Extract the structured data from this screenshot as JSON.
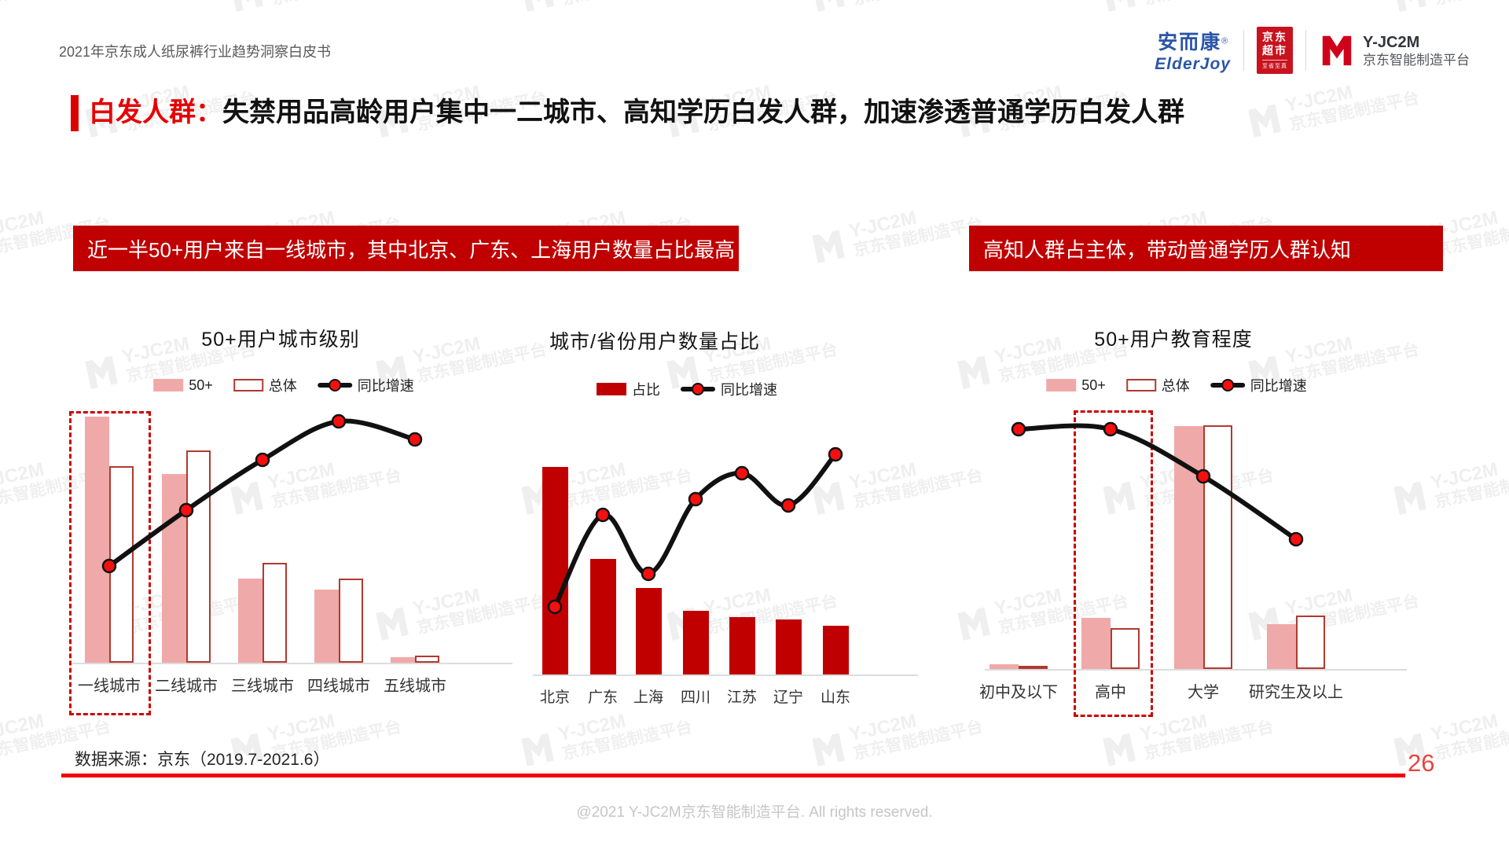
{
  "page": {
    "header_title": "2021年京东成人纸尿裤行业趋势洞察白皮书",
    "headline_tag": "白发人群：",
    "headline_text": "失禁用品高龄用户集中一二城市、高知学历白发人群，加速渗透普通学历白发人群",
    "source_note": "数据来源：京东（2019.7-2021.6）",
    "page_number": "26",
    "footer_copyright": "@2021 Y-JC2M京东智能制造平台. All rights reserved."
  },
  "logos": {
    "elderjoy_cn": "安而康",
    "elderjoy_reg": "®",
    "elderjoy_en": "ElderJoy",
    "jd_market_line1": "京东",
    "jd_market_line2": "超市",
    "jd_market_tagline": "至省至真",
    "platform_name": "Y-JC2M",
    "platform_sub": "京东智能制造平台"
  },
  "banners": {
    "left": "近一半50+用户来自一线城市，其中北京、广东、上海用户数量占比最高",
    "right": "高知人群占主体，带动普通学历人群认知"
  },
  "watermark": {
    "line1": "Y-JC2M",
    "line2": "京东智能制造平台"
  },
  "colors": {
    "banner_red": "#C00000",
    "headline_red": "#E60000",
    "bar_pink": "#EFA9A9",
    "bar_outline_red": "#B03A30",
    "bar_red": "#C00000",
    "line_black": "#111111",
    "dot_red": "#F50F0F",
    "rule_red": "#F40000",
    "elderjoy_blue": "#2B55A7"
  },
  "chart_data": [
    {
      "type": "bar+line",
      "title": "50+用户城市级别",
      "categories": [
        "一线城市",
        "二线城市",
        "三线城市",
        "四线城市",
        "五线城市"
      ],
      "unit": "estimated index (0-100), read from bar/line heights",
      "series": [
        {
          "name": "50+",
          "type": "bar",
          "style": "pink",
          "values": [
            47,
            36,
            16,
            14,
            1
          ]
        },
        {
          "name": "总体",
          "type": "bar",
          "style": "outline",
          "values": [
            37.5,
            40.5,
            19,
            16,
            1.4
          ]
        },
        {
          "name": "同比增速",
          "type": "line",
          "values": [
            38,
            60,
            80,
            95,
            88
          ]
        }
      ],
      "legend": [
        {
          "label": "50+",
          "swatch": "pink"
        },
        {
          "label": "总体",
          "swatch": "outline"
        },
        {
          "label": "同比增速",
          "swatch": "line"
        }
      ],
      "highlighted_category": "一线城市",
      "legend_position": "top-center",
      "grid": false
    },
    {
      "type": "bar+line",
      "title": "城市/省份用户数量占比",
      "categories": [
        "北京",
        "广东",
        "上海",
        "四川",
        "江苏",
        "辽宁",
        "山东"
      ],
      "unit": "estimated index (0-100), read from bar/line heights",
      "series": [
        {
          "name": "占比",
          "type": "bar",
          "style": "red",
          "values": [
            18,
            10,
            7.5,
            5.5,
            5,
            4.8,
            4.2
          ]
        },
        {
          "name": "同比增速",
          "type": "line",
          "values": [
            29,
            68,
            43,
            75,
            86,
            72,
            94
          ]
        }
      ],
      "legend": [
        {
          "label": "占比",
          "swatch": "red"
        },
        {
          "label": "同比增速",
          "swatch": "line"
        }
      ],
      "legend_position": "top-center",
      "grid": false
    },
    {
      "type": "bar+line",
      "title": "50+用户教育程度",
      "categories": [
        "初中及以下",
        "高中",
        "大学",
        "研究生及以上"
      ],
      "unit": "estimated index (0-100), read from bar/line heights",
      "series": [
        {
          "name": "50+",
          "type": "bar",
          "style": "pink",
          "values": [
            1.2,
            13,
            61.8,
            11.4
          ]
        },
        {
          "name": "总体",
          "type": "bar",
          "style": "outline",
          "values": [
            0.8,
            10.4,
            62,
            13.6
          ]
        },
        {
          "name": "同比增速",
          "type": "line",
          "values": [
            92,
            92,
            74,
            50
          ]
        }
      ],
      "legend": [
        {
          "label": "50+",
          "swatch": "pink"
        },
        {
          "label": "总体",
          "swatch": "outline"
        },
        {
          "label": "同比增速",
          "swatch": "line"
        }
      ],
      "highlighted_category": "高中",
      "legend_position": "top-center",
      "grid": false
    }
  ]
}
